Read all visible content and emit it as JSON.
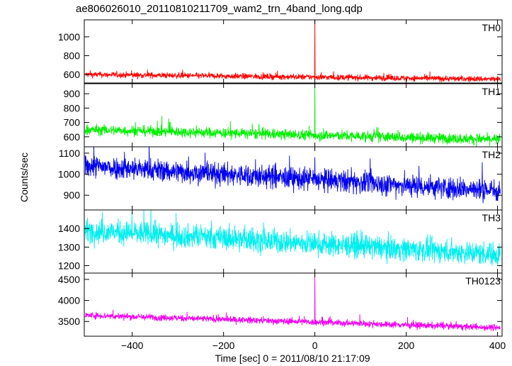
{
  "title": "ae806026010_20110810211709_wam2_trn_4band_long.qdp",
  "ylabel": "Counts/sec",
  "xlabel": "Time [sec] 0 = 2011/08/10 21:17:09",
  "chart_data": {
    "type": "line",
    "title": "ae806026010_20110810211709_wam2_trn_4band_long.qdp",
    "xlabel": "Time [sec] 0 = 2011/08/10 21:17:09",
    "ylabel": "Counts/sec",
    "xlim": [
      -505,
      410
    ],
    "xticks": [
      -400,
      -200,
      0,
      200,
      400
    ],
    "xtick_labels": [
      "−400",
      "−200",
      "0",
      "200",
      "400"
    ],
    "panels": [
      {
        "name": "TH0",
        "color": "#ff0000",
        "ylim": [
          510,
          1180
        ],
        "yticks": [
          600,
          800,
          1000
        ],
        "start": 600,
        "end": 550,
        "noise": 22,
        "spike": {
          "x": 0,
          "y": 1200
        }
      },
      {
        "name": "TH1",
        "color": "#00ee00",
        "ylim": [
          530,
          970
        ],
        "yticks": [
          600,
          700,
          800,
          900
        ],
        "start": 650,
        "end": 580,
        "noise": 26,
        "spike": {
          "x": 0,
          "y": 975
        }
      },
      {
        "name": "TH2",
        "color": "#0000ee",
        "ylim": [
          830,
          1130
        ],
        "yticks": [
          900,
          1000,
          1100
        ],
        "start": 1040,
        "end": 920,
        "noise": 38,
        "spike": {
          "x": 0,
          "y": 1080
        }
      },
      {
        "name": "TH3",
        "color": "#00eeee",
        "ylim": [
          1160,
          1500
        ],
        "yticks": [
          1200,
          1300,
          1400
        ],
        "start": 1390,
        "end": 1260,
        "noise": 45,
        "spike": null
      },
      {
        "name": "TH0123",
        "color": "#ee00ee",
        "ylim": [
          3150,
          4650
        ],
        "yticks": [
          3500,
          4000,
          4500
        ],
        "start": 3650,
        "end": 3350,
        "noise": 55,
        "spike": {
          "x": 0,
          "y": 4650
        }
      }
    ]
  }
}
